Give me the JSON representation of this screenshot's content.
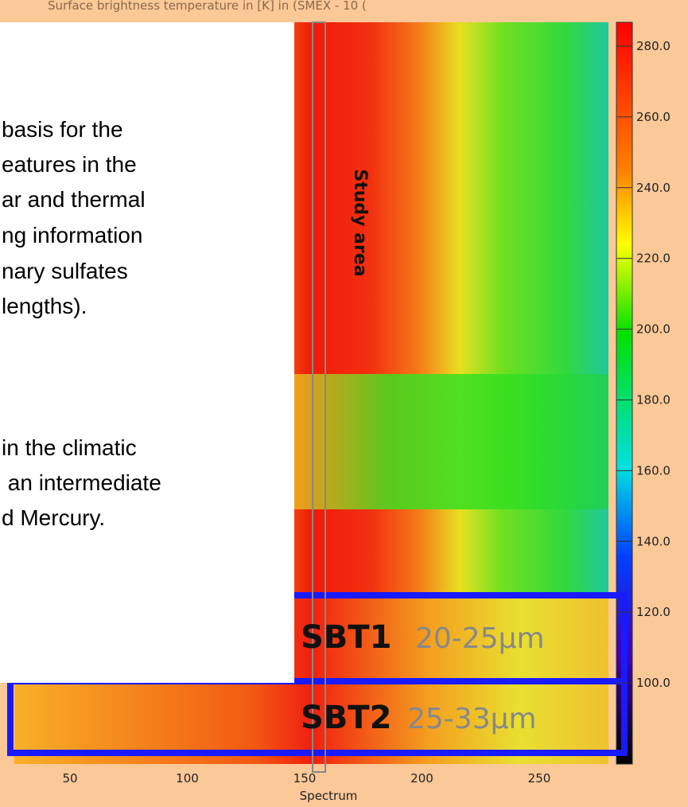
{
  "plot": {
    "title": "Surface  brightness  temperature  in  [K]  in  (SMEX  - 10 (",
    "colorbar_labels": [
      "280.0",
      "260.0",
      "240.0",
      "220.0",
      "200.0",
      "180.0",
      "160.0",
      "140.0",
      "120.0",
      "100.0"
    ],
    "x_tick_labels": [
      "50",
      "100",
      "150",
      "200",
      "250"
    ],
    "x_label": "Spectrum",
    "annotation": "Study area",
    "bands": [
      {
        "name": "SBT1",
        "range": "20-25µm"
      },
      {
        "name": "SBT2",
        "range": "25-33µm"
      }
    ]
  },
  "text_box": {
    "lines": [
      "basis for the",
      "eatures in the",
      "ar and thermal",
      "ng information",
      "nary sulfates",
      "lengths).",
      "in the climatic",
      " an intermediate",
      "d Mercury."
    ]
  }
}
